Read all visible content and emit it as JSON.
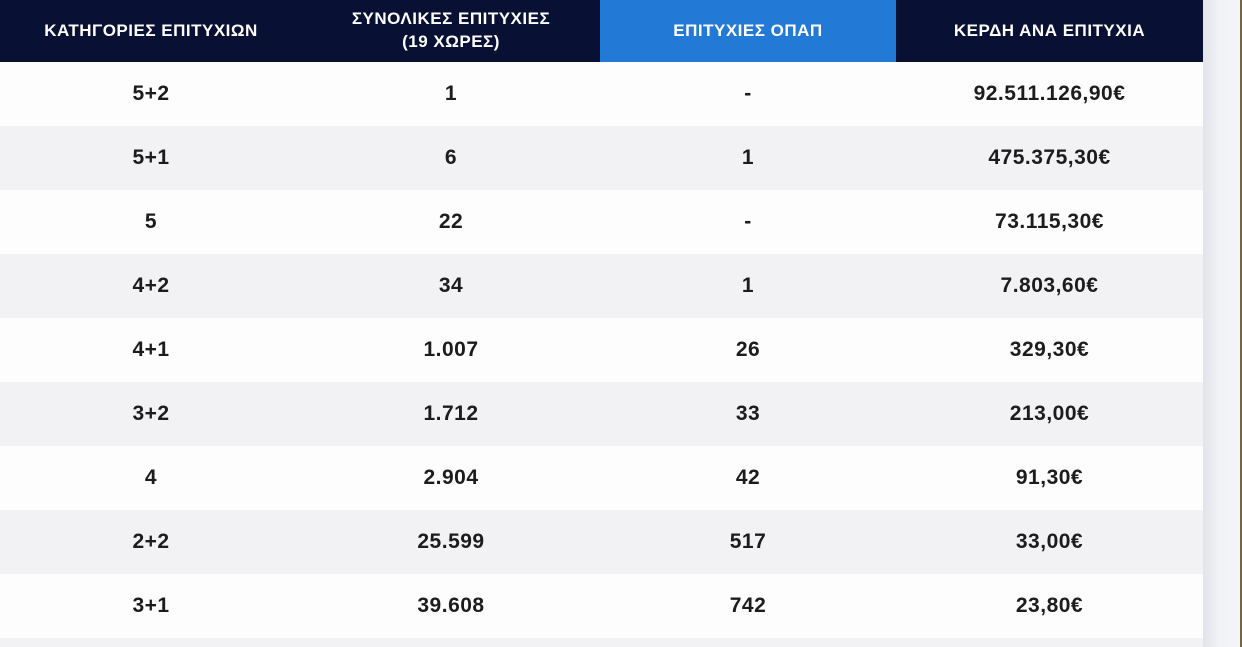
{
  "colors": {
    "header_background": "#081034",
    "highlight_column_background": "#2379d6",
    "header_text": "#ffffff",
    "row_white": "#fdfdfd",
    "row_gray": "#f2f2f4",
    "body_text": "#1c1c1e"
  },
  "table": {
    "columns": [
      {
        "label": "ΚΑΤΗΓΟΡΙΕΣ ΕΠΙΤΥΧΙΩΝ",
        "highlighted": false
      },
      {
        "label": "ΣΥΝΟΛΙΚΕΣ ΕΠΙΤΥΧΙΕΣ",
        "sublabel": "(19 ΧΩΡΕΣ)",
        "highlighted": false
      },
      {
        "label": "ΕΠΙΤΥΧΙΕΣ ΟΠΑΠ",
        "highlighted": true
      },
      {
        "label": "ΚΕΡΔΗ ΑΝΑ ΕΠΙΤΥΧΙΑ",
        "highlighted": false
      }
    ],
    "rows": [
      [
        "5+2",
        "1",
        "-",
        "92.511.126,90€"
      ],
      [
        "5+1",
        "6",
        "1",
        "475.375,30€"
      ],
      [
        "5",
        "22",
        "-",
        "73.115,30€"
      ],
      [
        "4+2",
        "34",
        "1",
        "7.803,60€"
      ],
      [
        "4+1",
        "1.007",
        "26",
        "329,30€"
      ],
      [
        "3+2",
        "1.712",
        "33",
        "213,00€"
      ],
      [
        "4",
        "2.904",
        "42",
        "91,30€"
      ],
      [
        "2+2",
        "25.599",
        "517",
        "33,00€"
      ],
      [
        "3+1",
        "39.608",
        "742",
        "23,80€"
      ]
    ]
  }
}
